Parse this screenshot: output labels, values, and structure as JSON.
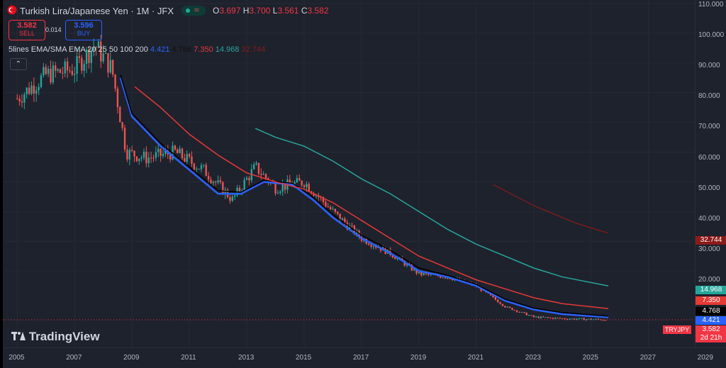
{
  "header": {
    "symbol": "Turkish Lira/Japanese Yen · 1M · JFX",
    "ohlc": {
      "o_label": "O",
      "o": "3.697",
      "h_label": "H",
      "h": "3.700",
      "l_label": "L",
      "l": "3.561",
      "c_label": "C",
      "c": "3.582"
    },
    "sell": {
      "value": "3.582",
      "label": "SELL"
    },
    "spread": "0.014",
    "buy": {
      "value": "3.596",
      "label": "BUY"
    },
    "indicator": "5lines EMA/SMA EMA 20 25 50 100 200",
    "ind_values": [
      "4.421",
      "4.768",
      "7.350",
      "14.968",
      "32.744"
    ]
  },
  "logo_text": "TradingView",
  "price_axis": {
    "ticks": [
      "110.000",
      "100.000",
      "90.000",
      "80.000",
      "70.000",
      "60.000",
      "50.000",
      "40.000",
      "30.000",
      "20.000"
    ]
  },
  "time_axis": {
    "ticks": [
      "2005",
      "2007",
      "2009",
      "2011",
      "2013",
      "2015",
      "2017",
      "2019",
      "2021",
      "2023",
      "2025",
      "2027",
      "2029"
    ]
  },
  "labels": {
    "ema200": "32.744",
    "ema100": "14.968",
    "ema50": "7.350",
    "ema25": "4.768",
    "ema20": "4.421",
    "symbol_tag": "TRYJPY",
    "last_price": "3.582",
    "countdown": "2d 21h"
  },
  "colors": {
    "up": "#26a69a",
    "down": "#ef5350",
    "ema20": "#2962ff",
    "ema25": "#000000",
    "ema50": "#e53935",
    "ema100": "#26a69a",
    "ema200": "#8b1a1a"
  },
  "chart_data": {
    "type": "line",
    "series": [
      {
        "name": "TRYJPY",
        "x": [
          2005,
          2006,
          2007,
          2007.7,
          2008.3,
          2008.8,
          2009.5,
          2010.5,
          2011.5,
          2012.5,
          2013.3,
          2014,
          2015,
          2016,
          2017,
          2018,
          2019,
          2020,
          2021,
          2022,
          2023,
          2024,
          2025.6
        ],
        "values": [
          78,
          86,
          88,
          96,
          88,
          60,
          58,
          60,
          54,
          44,
          55,
          48,
          50,
          40,
          31,
          26,
          19,
          18,
          15,
          8,
          4.5,
          4,
          3.6
        ]
      },
      {
        "name": "EMA 20",
        "values": [
          4.4
        ]
      },
      {
        "name": "EMA 25",
        "values": [
          4.8
        ]
      },
      {
        "name": "EMA 50",
        "values": [
          7.35
        ]
      },
      {
        "name": "EMA 100",
        "values": [
          14.97
        ]
      },
      {
        "name": "EMA 200",
        "values": [
          32.74
        ]
      }
    ],
    "ylim": [
      0,
      110
    ],
    "xlim": [
      2004.5,
      2029.7
    ]
  }
}
